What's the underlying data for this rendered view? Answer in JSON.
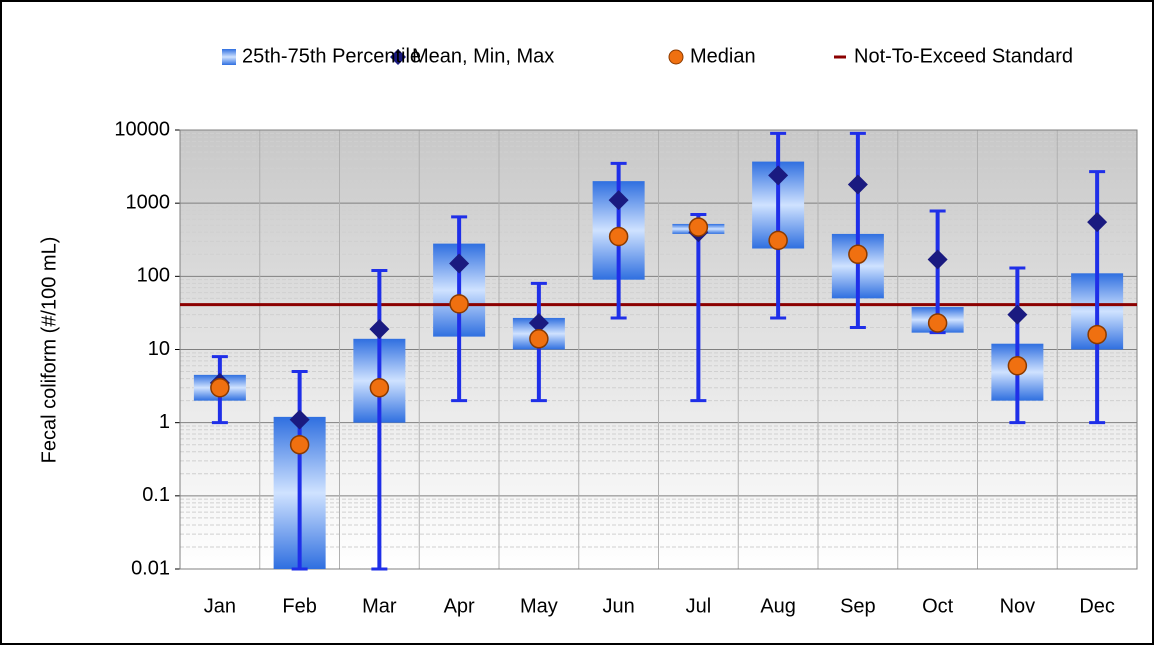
{
  "chart_data": {
    "type": "box",
    "y_label": "Fecal coliform (#/100 mL)",
    "log_scale": true,
    "grid": true,
    "legend": "top",
    "categories": [
      "Jan",
      "Feb",
      "Mar",
      "Apr",
      "May",
      "Jun",
      "Jul",
      "Aug",
      "Sep",
      "Oct",
      "Nov",
      "Dec"
    ],
    "ylim": [
      0.01,
      10000
    ],
    "yticks": [
      0.01,
      0.1,
      1,
      10,
      100,
      1000,
      10000
    ],
    "series": [
      {
        "name": "25th-75th Percentile",
        "color": "#2f6fe0",
        "low": [
          2,
          0.01,
          1,
          15,
          10,
          90,
          380,
          240,
          50,
          17,
          2,
          10
        ],
        "high": [
          4.5,
          1.2,
          14,
          280,
          27,
          2000,
          520,
          3700,
          380,
          38,
          12,
          110
        ]
      },
      {
        "name": "Mean, Min, Max",
        "color": "#1a1a80",
        "bar_color": "#1f2fe8",
        "values": [
          3.5,
          1.1,
          19,
          150,
          23,
          1100,
          400,
          2400,
          1800,
          170,
          30,
          550
        ],
        "min": [
          1,
          0.01,
          0.01,
          2,
          2,
          27,
          2,
          27,
          20,
          17,
          1,
          1
        ],
        "max": [
          8,
          5,
          120,
          650,
          80,
          3500,
          700,
          9000,
          9000,
          780,
          130,
          2700
        ]
      },
      {
        "name": "Median",
        "color": "#f07010",
        "values": [
          3,
          0.5,
          3,
          42,
          14,
          350,
          470,
          310,
          200,
          23,
          6,
          16
        ]
      },
      {
        "name": "Not-To-Exceed Standard",
        "color": "#8b0000",
        "value": 41
      }
    ]
  }
}
